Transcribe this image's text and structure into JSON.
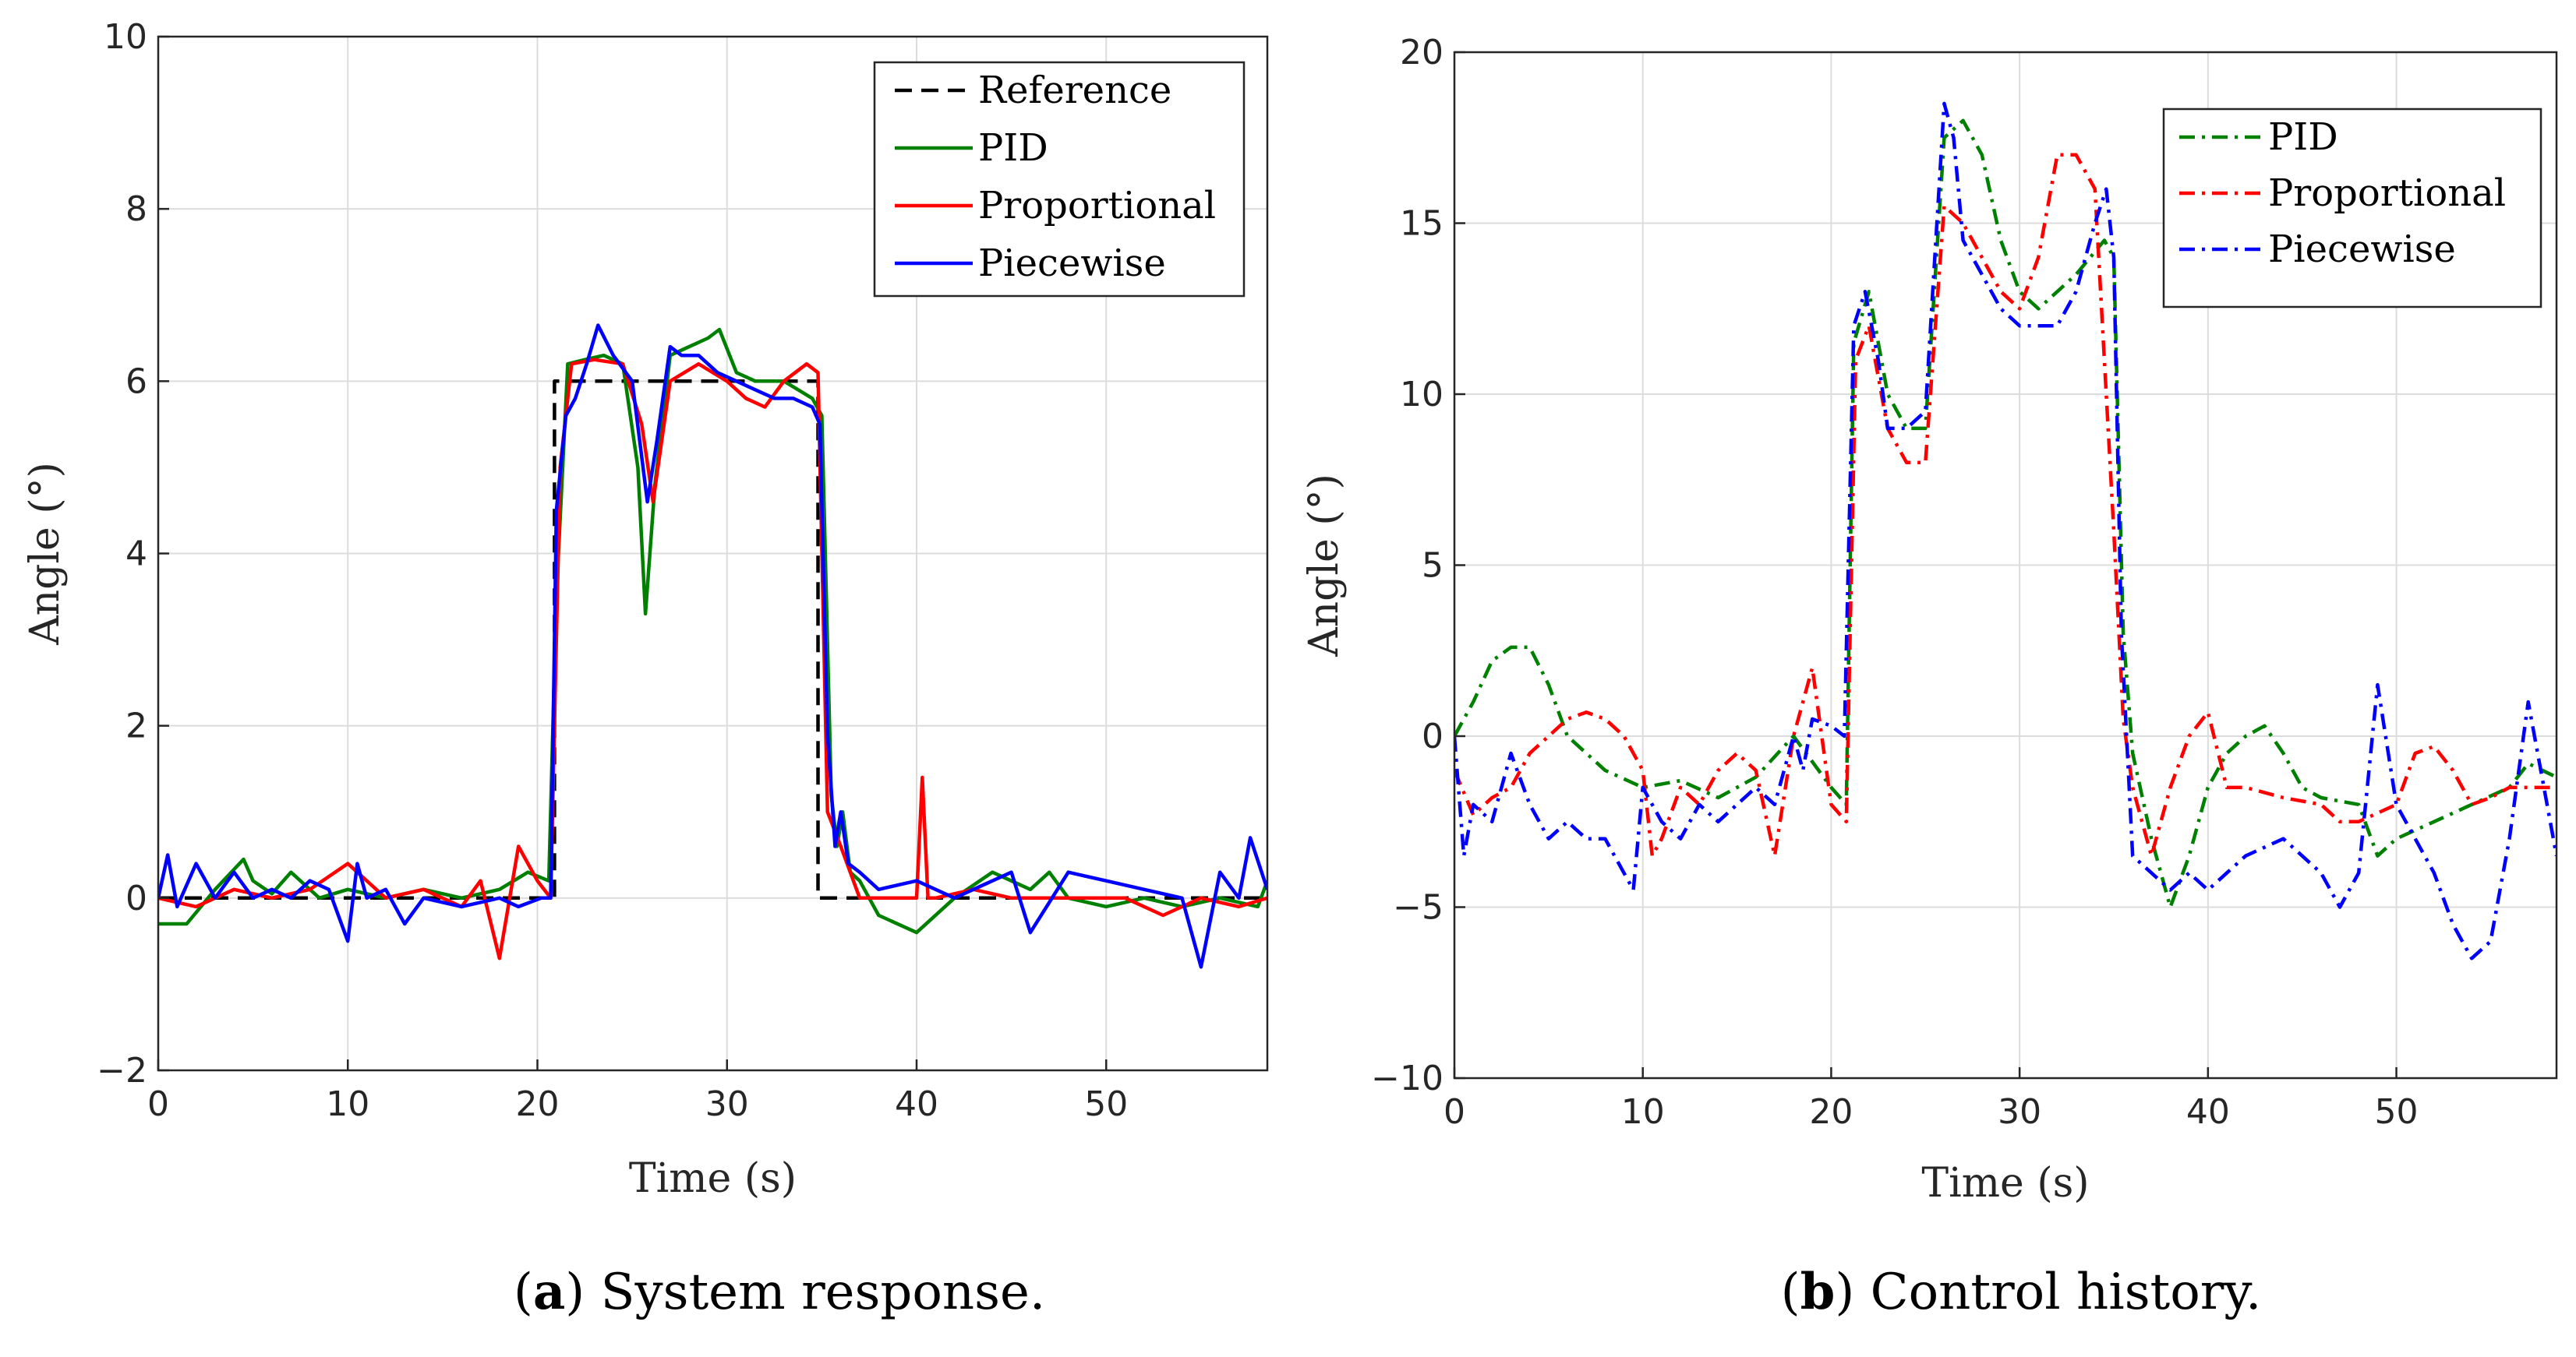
{
  "chart_data": [
    {
      "type": "line",
      "id": "a",
      "caption_letter": "a",
      "caption_open": "(",
      "caption_close": ")",
      "caption_text": " System response.",
      "xlabel": "Time (s)",
      "ylabel": "Angle (°)",
      "xlim": [
        0,
        58.5
      ],
      "ylim": [
        -2,
        10
      ],
      "xticks": [
        0,
        10,
        20,
        30,
        40,
        50
      ],
      "yticks": [
        -2,
        0,
        2,
        4,
        6,
        8,
        10
      ],
      "ytick_labels": [
        "−2",
        "0",
        "2",
        "4",
        "6",
        "8",
        "10"
      ],
      "grid": true,
      "legend_position": "top-right",
      "series": [
        {
          "name": "Reference",
          "color": "#000000",
          "dash": "dashed",
          "x": [
            0,
            20.9,
            20.9,
            34.8,
            34.8,
            58.5
          ],
          "y": [
            0,
            0,
            6,
            6,
            0,
            0
          ]
        },
        {
          "name": "PID",
          "color": "#008000",
          "dash": "solid",
          "x": [
            0,
            1.5,
            3,
            4.5,
            5,
            6,
            7,
            8.5,
            10,
            12,
            14,
            16,
            18,
            19.5,
            20.6,
            21,
            21.6,
            22.5,
            23.5,
            24.5,
            25.3,
            25.7,
            26.2,
            27,
            28,
            29,
            29.6,
            30.5,
            31.5,
            33,
            34.5,
            35,
            35.5,
            35.8,
            36.1,
            36.5,
            37,
            38,
            40,
            42,
            44,
            46,
            47,
            48,
            50,
            52,
            54,
            56,
            58,
            58.5
          ],
          "y": [
            -0.3,
            -0.3,
            0.1,
            0.45,
            0.2,
            0.05,
            0.3,
            0.0,
            0.1,
            0.0,
            0.1,
            0.0,
            0.1,
            0.3,
            0.2,
            3.5,
            6.2,
            6.25,
            6.3,
            6.2,
            5.0,
            3.3,
            4.8,
            6.3,
            6.4,
            6.5,
            6.6,
            6.1,
            6.0,
            6.0,
            5.8,
            5.6,
            1.2,
            0.6,
            1.0,
            0.3,
            0.2,
            -0.2,
            -0.4,
            0.0,
            0.3,
            0.1,
            0.3,
            0.0,
            -0.1,
            0.0,
            -0.1,
            0.0,
            -0.1,
            0.2
          ]
        },
        {
          "name": "Proportional",
          "color": "#ff0000",
          "dash": "solid",
          "x": [
            0,
            2,
            4,
            6,
            8,
            10,
            12,
            14,
            16,
            17,
            18,
            19,
            20,
            20.7,
            21.2,
            21.8,
            23,
            24.5,
            25.5,
            26.1,
            27,
            28.5,
            30,
            31,
            32,
            33,
            34.2,
            34.8,
            35.3,
            36,
            37,
            38,
            39.5,
            40,
            40.3,
            40.6,
            41,
            43,
            45,
            47,
            49,
            51,
            53,
            55,
            57,
            58.5
          ],
          "y": [
            0.0,
            -0.1,
            0.1,
            0.0,
            0.1,
            0.4,
            0.0,
            0.1,
            -0.1,
            0.2,
            -0.7,
            0.6,
            0.2,
            0.0,
            5.0,
            6.2,
            6.25,
            6.2,
            5.5,
            4.6,
            6.0,
            6.2,
            6.0,
            5.8,
            5.7,
            6.0,
            6.2,
            6.1,
            1.0,
            0.6,
            0.0,
            0.0,
            0.0,
            0.0,
            1.4,
            0.0,
            0.0,
            0.1,
            0.0,
            0.0,
            0.0,
            0.0,
            -0.2,
            0.0,
            -0.1,
            0.0
          ]
        },
        {
          "name": "Piecewise",
          "color": "#0000ff",
          "dash": "solid",
          "x": [
            0,
            0.5,
            1,
            2,
            3,
            4,
            5,
            6,
            7,
            8,
            9,
            10,
            10.5,
            11,
            12,
            13,
            14,
            16,
            18,
            19,
            20.2,
            20.7,
            21,
            21.5,
            22,
            22.6,
            23.2,
            24,
            25,
            25.8,
            26.3,
            27,
            27.6,
            28.5,
            29.5,
            30.5,
            31.5,
            32.5,
            33.5,
            34.5,
            34.9,
            35.3,
            35.7,
            36,
            36.4,
            37,
            38,
            40,
            42,
            45,
            46,
            48,
            50,
            52,
            54,
            55,
            56,
            57,
            57.6,
            58.5
          ],
          "y": [
            0.0,
            0.5,
            -0.1,
            0.4,
            0.0,
            0.3,
            0.0,
            0.1,
            0.0,
            0.2,
            0.1,
            -0.5,
            0.4,
            0.0,
            0.1,
            -0.3,
            0.0,
            -0.1,
            0.0,
            -0.1,
            0.0,
            0.0,
            4.5,
            5.6,
            5.8,
            6.2,
            6.65,
            6.3,
            6.0,
            4.6,
            5.3,
            6.4,
            6.3,
            6.3,
            6.1,
            6.0,
            5.9,
            5.8,
            5.8,
            5.7,
            5.5,
            1.9,
            0.6,
            1.0,
            0.4,
            0.3,
            0.1,
            0.2,
            0.0,
            0.3,
            -0.4,
            0.3,
            0.2,
            0.1,
            0.0,
            -0.8,
            0.3,
            0.0,
            0.7,
            0.1
          ]
        }
      ]
    },
    {
      "type": "line",
      "id": "b",
      "caption_letter": "b",
      "caption_open": "(",
      "caption_close": ")",
      "caption_text": " Control history.",
      "xlabel": "Time (s)",
      "ylabel": "Angle (°)",
      "xlim": [
        0,
        58.5
      ],
      "ylim": [
        -10,
        20
      ],
      "xticks": [
        0,
        10,
        20,
        30,
        40,
        50
      ],
      "yticks": [
        -10,
        -5,
        0,
        5,
        10,
        15,
        20
      ],
      "ytick_labels": [
        "−10",
        "−5",
        "0",
        "5",
        "10",
        "15",
        "20"
      ],
      "grid": true,
      "legend_position": "top-right",
      "series": [
        {
          "name": "PID",
          "color": "#008000",
          "dash": "dashdot",
          "x": [
            0,
            1,
            2,
            3,
            4,
            5,
            6,
            8,
            10,
            12,
            14,
            16,
            18,
            20,
            20.8,
            21.2,
            22,
            23,
            24,
            25,
            26,
            27,
            28,
            29,
            30,
            31,
            32,
            33,
            34.5,
            35,
            35.5,
            36,
            37,
            38,
            39,
            40,
            41,
            42,
            43,
            44,
            45,
            46,
            48,
            49,
            50,
            52,
            54,
            56,
            57,
            58.5
          ],
          "y": [
            0.0,
            1.0,
            2.2,
            2.6,
            2.6,
            1.5,
            0.0,
            -1.0,
            -1.5,
            -1.3,
            -1.8,
            -1.2,
            0.0,
            -1.5,
            -2.0,
            11.5,
            13.0,
            10.0,
            9.0,
            9.0,
            17.5,
            18.0,
            17.0,
            14.5,
            13.0,
            12.5,
            13.0,
            13.5,
            14.5,
            14.0,
            3.0,
            -0.5,
            -3.0,
            -5.0,
            -3.5,
            -1.5,
            -0.5,
            0.0,
            0.3,
            -0.5,
            -1.5,
            -1.8,
            -2.0,
            -3.5,
            -3.0,
            -2.5,
            -2.0,
            -1.5,
            -0.8,
            -1.2
          ]
        },
        {
          "name": "Proportional",
          "color": "#ff0000",
          "dash": "dashdot",
          "x": [
            0,
            1,
            2,
            3,
            4,
            5,
            6,
            7,
            8,
            9,
            10,
            10.5,
            11,
            12,
            13,
            14,
            15,
            16,
            17,
            18,
            19,
            20,
            20.8,
            21.3,
            22,
            23,
            24,
            25,
            26,
            27,
            28,
            29,
            30,
            31,
            32,
            33,
            34,
            35,
            35.5,
            36,
            37,
            38,
            39,
            40,
            41,
            42,
            44,
            46,
            47,
            48,
            50,
            51,
            52,
            53,
            54,
            55,
            56,
            57,
            58.5
          ],
          "y": [
            -1.0,
            -2.3,
            -1.8,
            -1.5,
            -0.5,
            0.0,
            0.5,
            0.7,
            0.5,
            0.0,
            -1.0,
            -3.5,
            -3.0,
            -1.5,
            -2.0,
            -1.0,
            -0.5,
            -1.0,
            -3.5,
            0.0,
            2.0,
            -2.0,
            -2.5,
            11.0,
            12.0,
            9.0,
            8.0,
            8.0,
            15.5,
            15.0,
            14.0,
            13.0,
            12.5,
            14.0,
            17.0,
            17.0,
            16.0,
            6.0,
            0.5,
            -1.5,
            -3.5,
            -1.5,
            0.0,
            0.7,
            -1.5,
            -1.5,
            -1.8,
            -2.0,
            -2.5,
            -2.5,
            -2.0,
            -0.5,
            -0.3,
            -1.0,
            -2.0,
            -1.8,
            -1.5,
            -1.5,
            -1.5
          ]
        },
        {
          "name": "Piecewise",
          "color": "#0000ff",
          "dash": "dashdot",
          "x": [
            0,
            0.5,
            1,
            2,
            3,
            4,
            5,
            6,
            7,
            8,
            9,
            9.5,
            10,
            11,
            12,
            13,
            14,
            15,
            16,
            17,
            18,
            18.5,
            19,
            20,
            20.7,
            21.2,
            21.8,
            22.5,
            23,
            24,
            25,
            26,
            26.5,
            27,
            28,
            29,
            30,
            31,
            32,
            33,
            34,
            34.6,
            35,
            35.4,
            36,
            37,
            38,
            39,
            40,
            41,
            42,
            44,
            45,
            46,
            47,
            48,
            49,
            50,
            51,
            52,
            53,
            54,
            55,
            56,
            57,
            58.5
          ],
          "y": [
            0.0,
            -3.5,
            -2.0,
            -2.5,
            -0.5,
            -2.0,
            -3.0,
            -2.5,
            -3.0,
            -3.0,
            -4.0,
            -4.5,
            -1.5,
            -2.5,
            -3.0,
            -2.0,
            -2.5,
            -2.0,
            -1.5,
            -2.0,
            0.0,
            -1.0,
            0.5,
            0.3,
            0.0,
            12.0,
            13.0,
            11.0,
            9.0,
            9.0,
            9.5,
            18.5,
            17.5,
            14.5,
            13.5,
            12.5,
            12.0,
            12.0,
            12.0,
            13.0,
            15.0,
            16.0,
            14.0,
            3.0,
            -3.5,
            -4.0,
            -4.5,
            -4.0,
            -4.5,
            -4.0,
            -3.5,
            -3.0,
            -3.5,
            -4.0,
            -5.0,
            -4.0,
            1.5,
            -2.0,
            -3.0,
            -4.0,
            -5.5,
            -6.5,
            -6.0,
            -3.0,
            1.0,
            -3.5
          ]
        }
      ]
    }
  ]
}
